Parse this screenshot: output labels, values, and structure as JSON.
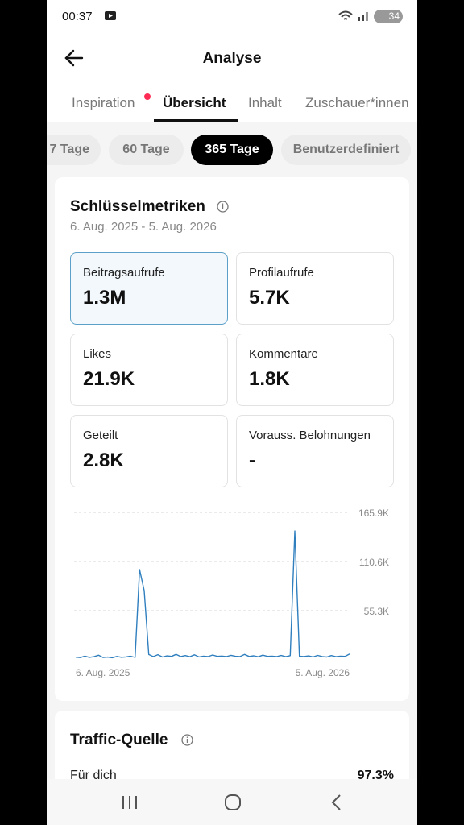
{
  "status_bar": {
    "time": "00:37",
    "battery": "34"
  },
  "header": {
    "title": "Analyse"
  },
  "tabs": [
    "Inspiration",
    "Übersicht",
    "Inhalt",
    "Zuschauer*innen"
  ],
  "ranges": [
    "7 Tage",
    "60 Tage",
    "365 Tage",
    "Benutzerdefiniert"
  ],
  "metrics_card": {
    "title": "Schlüsselmetriken",
    "date_range": "6. Aug. 2025 - 5. Aug. 2026",
    "tiles": [
      {
        "label": "Beitragsaufrufe",
        "value": "1.3M"
      },
      {
        "label": "Profilaufrufe",
        "value": "5.7K"
      },
      {
        "label": "Likes",
        "value": "21.9K"
      },
      {
        "label": "Kommentare",
        "value": "1.8K"
      },
      {
        "label": "Geteilt",
        "value": "2.8K"
      },
      {
        "label": "Vorauss. Belohnungen",
        "value": "-"
      }
    ]
  },
  "chart": {
    "type": "line",
    "color": "#2f7fbf",
    "ylim": [
      0,
      165900
    ],
    "yticks": [
      {
        "value": 165900,
        "label": "165.9K"
      },
      {
        "value": 110600,
        "label": "110.6K"
      },
      {
        "value": 55300,
        "label": "55.3K"
      }
    ],
    "categories": [
      "6. Aug. 2025",
      null,
      null,
      null,
      null,
      null,
      null,
      null,
      null,
      null,
      null,
      null,
      null,
      null,
      null,
      null,
      null,
      null,
      null,
      null,
      null,
      null,
      null,
      null,
      null,
      null,
      null,
      null,
      null,
      null,
      null,
      null,
      null,
      null,
      null,
      null,
      null,
      null,
      null,
      null,
      null,
      null,
      null,
      null,
      null,
      null,
      null,
      null,
      null,
      null,
      null,
      null,
      null,
      null,
      null,
      null,
      null,
      null,
      null,
      null,
      "5. Aug. 2026"
    ],
    "values": [
      3000,
      2500,
      4200,
      2800,
      3500,
      5200,
      2600,
      3100,
      2400,
      3800,
      2900,
      3300,
      4100,
      2700,
      101500,
      78000,
      6000,
      3600,
      5800,
      3200,
      4400,
      3900,
      6200,
      3700,
      4800,
      3500,
      5600,
      3300,
      4100,
      3600,
      5400,
      3900,
      4300,
      3600,
      5100,
      4000,
      3700,
      6100,
      3800,
      4500,
      3400,
      5300,
      3900,
      4200,
      3600,
      4900,
      3500,
      4700,
      145000,
      4100,
      3600,
      4400,
      3300,
      5000,
      3700,
      3200,
      4800,
      3500,
      4100,
      3900,
      6500
    ]
  },
  "traffic_card": {
    "title": "Traffic-Quelle",
    "rows": [
      {
        "label": "Für dich",
        "value": "97.3%"
      }
    ]
  }
}
